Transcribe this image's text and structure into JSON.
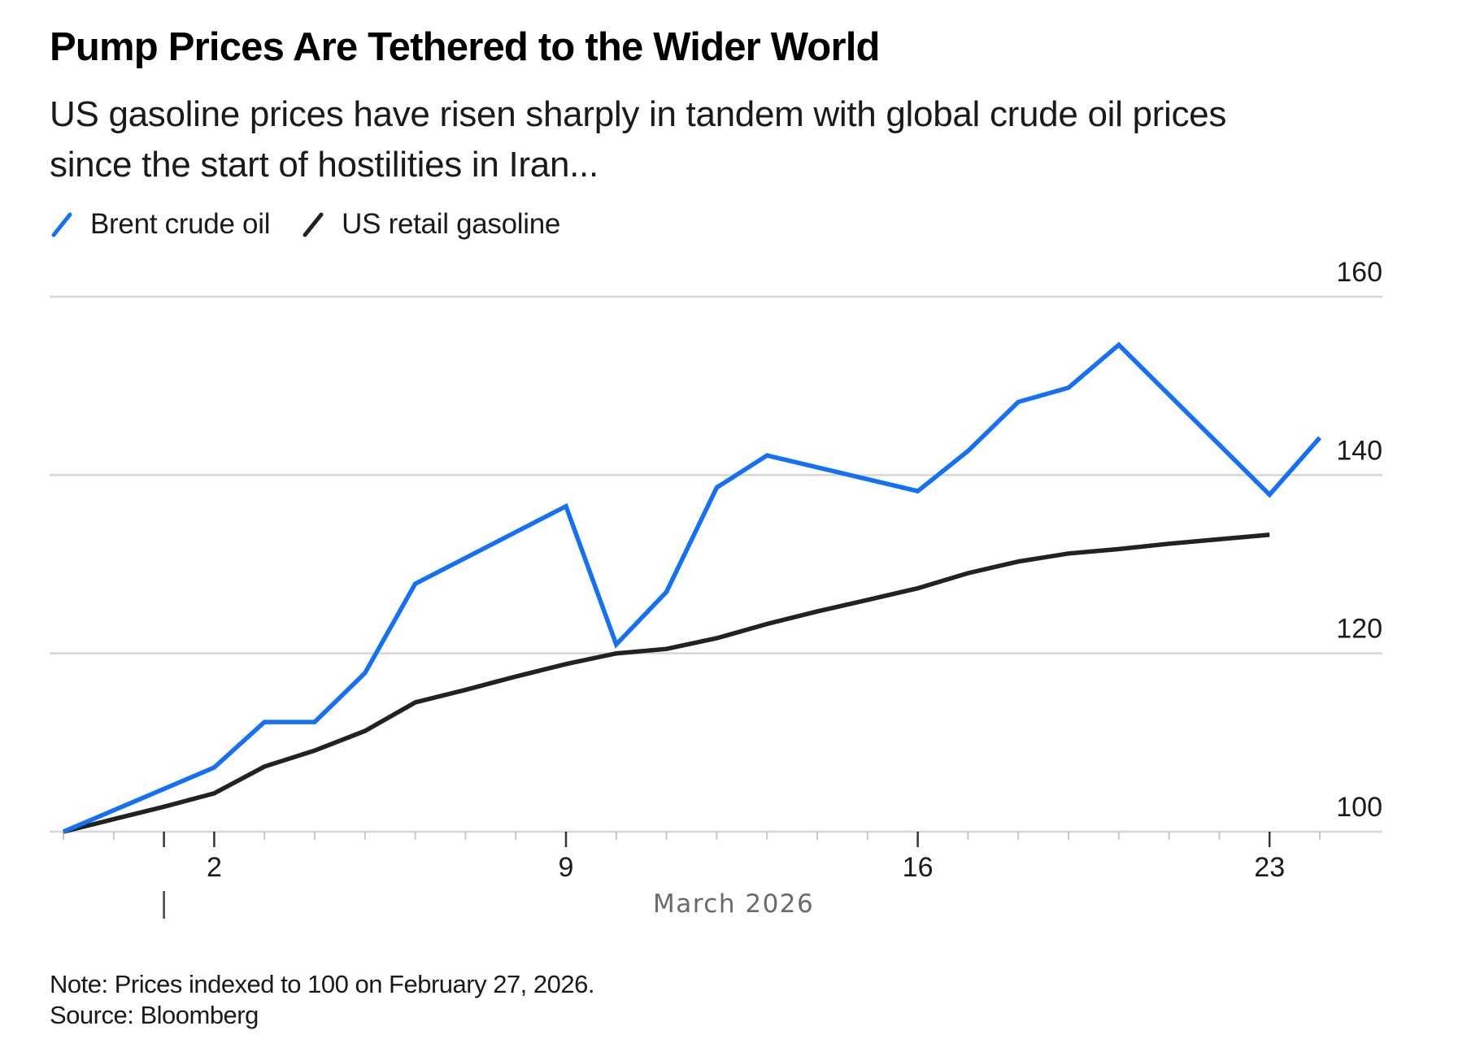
{
  "header": {
    "title": "Pump Prices Are Tethered to the Wider World",
    "subtitle": "US gasoline prices have risen sharply in tandem with global crude oil prices since the start of hostilities in Iran..."
  },
  "legend": [
    {
      "label": "Brent crude oil",
      "color": "#1471f5",
      "icon": "slash-line-icon"
    },
    {
      "label": "US retail gasoline",
      "color": "#222222",
      "icon": "slash-line-icon"
    }
  ],
  "footer": {
    "note": "Note: Prices indexed to 100 on February 27, 2026.",
    "source": "Source: Bloomberg"
  },
  "chart_data": {
    "type": "line",
    "title": "Pump Prices Are Tethered to the Wider World",
    "subtitle": "US gasoline prices have risen sharply in tandem with global crude oil prices since the start of hostilities in Iran...",
    "xlabel": "March 2026",
    "ylabel": "",
    "x_start": "2026-02-27",
    "x_end": "2026-03-24",
    "xlim_days": [
      0,
      25
    ],
    "x_ticks": [
      {
        "label": "2",
        "day": 3
      },
      {
        "label": "9",
        "day": 10
      },
      {
        "label": "16",
        "day": 17
      },
      {
        "label": "23",
        "day": 24
      }
    ],
    "month_separator_day": 2,
    "ylim": [
      100,
      160
    ],
    "y_ticks": [
      100,
      120,
      140,
      160
    ],
    "y_axis_side": "right",
    "grid": "horizontal",
    "legend_position": "top-left",
    "series": [
      {
        "name": "Brent crude oil",
        "color": "#1471f5",
        "points": [
          {
            "date": "Feb 27",
            "day": 0,
            "value": 100.0
          },
          {
            "date": "Mar 2",
            "day": 3,
            "value": 107.2
          },
          {
            "date": "Mar 3",
            "day": 4,
            "value": 112.3
          },
          {
            "date": "Mar 4",
            "day": 5,
            "value": 112.3
          },
          {
            "date": "Mar 5",
            "day": 6,
            "value": 117.8
          },
          {
            "date": "Mar 6",
            "day": 7,
            "value": 127.8
          },
          {
            "date": "Mar 9",
            "day": 10,
            "value": 136.5
          },
          {
            "date": "Mar 10",
            "day": 11,
            "value": 121.0
          },
          {
            "date": "Mar 11",
            "day": 12,
            "value": 126.9
          },
          {
            "date": "Mar 12",
            "day": 13,
            "value": 138.6
          },
          {
            "date": "Mar 13",
            "day": 14,
            "value": 142.2
          },
          {
            "date": "Mar 16",
            "day": 17,
            "value": 138.2
          },
          {
            "date": "Mar 17",
            "day": 18,
            "value": 142.7
          },
          {
            "date": "Mar 18",
            "day": 19,
            "value": 148.2
          },
          {
            "date": "Mar 19",
            "day": 20,
            "value": 149.8
          },
          {
            "date": "Mar 20",
            "day": 21,
            "value": 154.6
          },
          {
            "date": "Mar 23",
            "day": 24,
            "value": 137.8
          },
          {
            "date": "Mar 24",
            "day": 25,
            "value": 144.2
          }
        ]
      },
      {
        "name": "US retail gasoline",
        "color": "#222222",
        "points": [
          {
            "date": "Feb 27",
            "day": 0,
            "value": 100.0
          },
          {
            "date": "Feb 28",
            "day": 1,
            "value": 101.4
          },
          {
            "date": "Mar 1",
            "day": 2,
            "value": 102.8
          },
          {
            "date": "Mar 2",
            "day": 3,
            "value": 104.3
          },
          {
            "date": "Mar 3",
            "day": 4,
            "value": 107.3
          },
          {
            "date": "Mar 4",
            "day": 5,
            "value": 109.1
          },
          {
            "date": "Mar 5",
            "day": 6,
            "value": 111.3
          },
          {
            "date": "Mar 6",
            "day": 7,
            "value": 114.5
          },
          {
            "date": "Mar 7",
            "day": 8,
            "value": 115.9
          },
          {
            "date": "Mar 8",
            "day": 9,
            "value": 117.4
          },
          {
            "date": "Mar 9",
            "day": 10,
            "value": 118.8
          },
          {
            "date": "Mar 10",
            "day": 11,
            "value": 120.0
          },
          {
            "date": "Mar 11",
            "day": 12,
            "value": 120.5
          },
          {
            "date": "Mar 12",
            "day": 13,
            "value": 121.7
          },
          {
            "date": "Mar 13",
            "day": 14,
            "value": 123.3
          },
          {
            "date": "Mar 14",
            "day": 15,
            "value": 124.7
          },
          {
            "date": "Mar 15",
            "day": 16,
            "value": 126.0
          },
          {
            "date": "Mar 16",
            "day": 17,
            "value": 127.3
          },
          {
            "date": "Mar 17",
            "day": 18,
            "value": 129.0
          },
          {
            "date": "Mar 18",
            "day": 19,
            "value": 130.3
          },
          {
            "date": "Mar 19",
            "day": 20,
            "value": 131.2
          },
          {
            "date": "Mar 20",
            "day": 21,
            "value": 131.7
          },
          {
            "date": "Mar 21",
            "day": 22,
            "value": 132.3
          },
          {
            "date": "Mar 22",
            "day": 23,
            "value": 132.8
          },
          {
            "date": "Mar 23",
            "day": 24,
            "value": 133.3
          }
        ]
      }
    ],
    "note": "Note: Prices indexed to 100 on February 27, 2026.",
    "source": "Source: Bloomberg"
  }
}
